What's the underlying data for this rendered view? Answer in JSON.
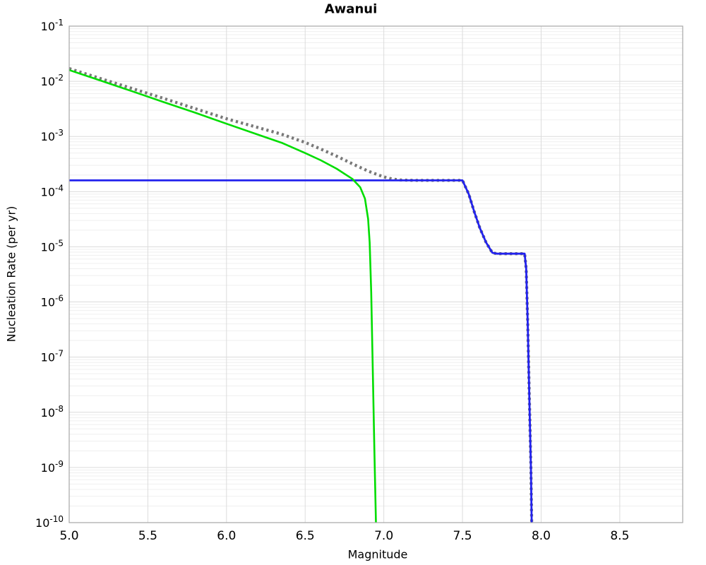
{
  "figure": {
    "title": "Awanui",
    "xlabel": "Magnitude",
    "ylabel": "Nucleation Rate (per yr)"
  },
  "chart_data": {
    "type": "line",
    "title": "Awanui",
    "xlabel": "Magnitude",
    "ylabel": "Nucleation Rate (per yr)",
    "x_scale": "linear",
    "y_scale": "log",
    "xlim": [
      5.0,
      8.9
    ],
    "ylim": [
      1e-10,
      0.1
    ],
    "xticks": [
      5.0,
      5.5,
      6.0,
      6.5,
      7.0,
      7.5,
      8.0,
      8.5
    ],
    "xtick_labels": [
      "5.0",
      "5.5",
      "6.0",
      "6.5",
      "7.0",
      "7.5",
      "8.0",
      "8.5"
    ],
    "ytick_exponents": [
      -1,
      -2,
      -3,
      -4,
      -5,
      -6,
      -7,
      -8,
      -9,
      -10
    ],
    "grid": {
      "major": true,
      "minor": true,
      "vertical_major": true
    },
    "legend": "none",
    "colors": {
      "gray_dotted": "#787878",
      "blue_solid": "#2222ee",
      "green_solid": "#00dd00",
      "major_grid": "#dcdcdc",
      "minor_grid": "#efefef",
      "frame": "#a6a6a6",
      "text": "#000000",
      "background": "#ffffff"
    },
    "series": [
      {
        "name": "gray-dotted",
        "style": "dotted",
        "color": "#787878",
        "stroke_width": 4.3,
        "dash": "3.2 4.3",
        "points": [
          [
            5.0,
            0.017
          ],
          [
            5.2,
            0.0112
          ],
          [
            5.4,
            0.0074
          ],
          [
            5.6,
            0.0049
          ],
          [
            5.8,
            0.0032
          ],
          [
            6.0,
            0.0021
          ],
          [
            6.2,
            0.00145
          ],
          [
            6.35,
            0.0011
          ],
          [
            6.5,
            0.00078
          ],
          [
            6.6,
            0.00059
          ],
          [
            6.7,
            0.00044
          ],
          [
            6.8,
            0.00032
          ],
          [
            6.9,
            0.000235
          ],
          [
            7.0,
            0.000185
          ],
          [
            7.05,
            0.00017
          ],
          [
            7.1,
            0.000163
          ],
          [
            7.2,
            0.00016
          ],
          [
            7.5,
            0.00016
          ],
          [
            7.54,
            9e-05
          ],
          [
            7.575,
            4.3e-05
          ],
          [
            7.61,
            2.2e-05
          ],
          [
            7.65,
            1.2e-05
          ],
          [
            7.69,
            7.8e-06
          ],
          [
            7.72,
            7.5e-06
          ],
          [
            7.895,
            7.5e-06
          ],
          [
            7.905,
            4e-06
          ],
          [
            7.915,
            4e-07
          ],
          [
            7.925,
            2e-08
          ],
          [
            7.935,
            1e-09
          ],
          [
            7.94,
            1e-10
          ]
        ]
      },
      {
        "name": "blue-solid",
        "style": "solid",
        "color": "#2222ee",
        "stroke_width": 2.8,
        "dash": "",
        "points": [
          [
            5.0,
            0.00016
          ],
          [
            7.5,
            0.00016
          ],
          [
            7.54,
            9e-05
          ],
          [
            7.575,
            4.3e-05
          ],
          [
            7.61,
            2.2e-05
          ],
          [
            7.65,
            1.2e-05
          ],
          [
            7.69,
            7.8e-06
          ],
          [
            7.72,
            7.5e-06
          ],
          [
            7.895,
            7.5e-06
          ],
          [
            7.905,
            4e-06
          ],
          [
            7.915,
            4e-07
          ],
          [
            7.925,
            2e-08
          ],
          [
            7.935,
            1e-09
          ],
          [
            7.94,
            1e-10
          ]
        ]
      },
      {
        "name": "green-solid",
        "style": "solid",
        "color": "#00dd00",
        "stroke_width": 2.6,
        "dash": "",
        "points": [
          [
            5.0,
            0.016
          ],
          [
            5.2,
            0.0103
          ],
          [
            5.4,
            0.0066
          ],
          [
            5.6,
            0.0042
          ],
          [
            5.8,
            0.0027
          ],
          [
            6.0,
            0.0017
          ],
          [
            6.2,
            0.00108
          ],
          [
            6.35,
            0.00077
          ],
          [
            6.5,
            0.0005
          ],
          [
            6.6,
            0.00037
          ],
          [
            6.7,
            0.00026
          ],
          [
            6.8,
            0.00017
          ],
          [
            6.85,
            0.00012
          ],
          [
            6.88,
            7.5e-05
          ],
          [
            6.9,
            3.2e-05
          ],
          [
            6.91,
            1.2e-05
          ],
          [
            6.92,
            1.5e-06
          ],
          [
            6.93,
            6e-08
          ],
          [
            6.94,
            2e-09
          ],
          [
            6.95,
            1e-10
          ]
        ]
      }
    ]
  }
}
